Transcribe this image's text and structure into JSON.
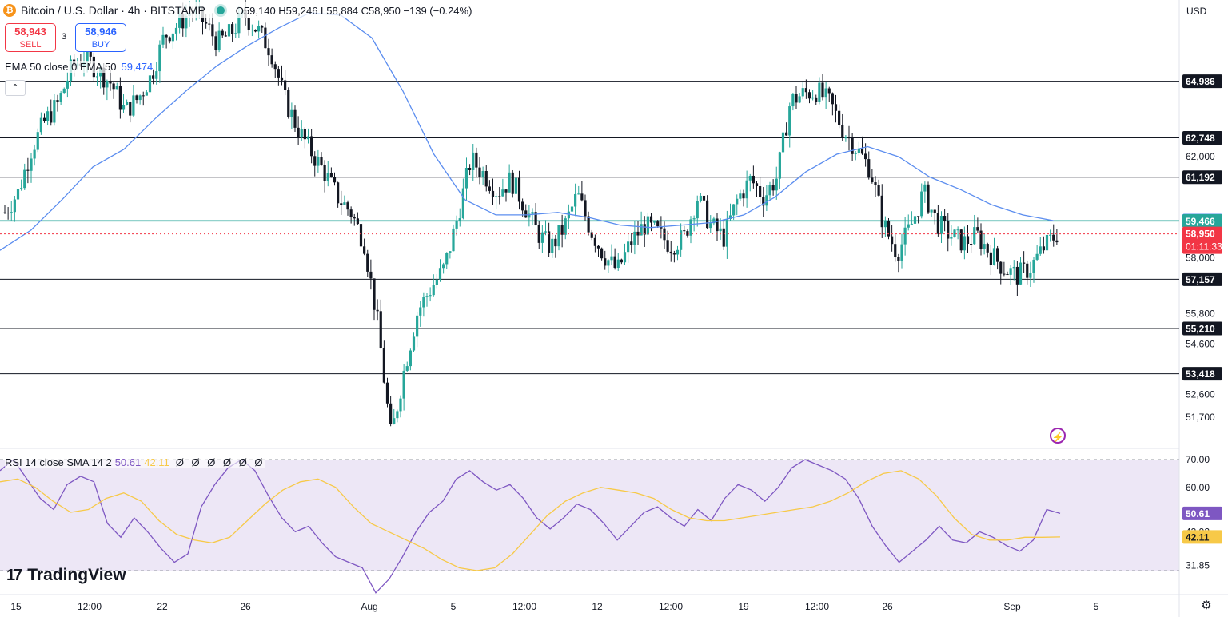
{
  "header": {
    "symbol_icon": "bitcoin-icon",
    "title": "Bitcoin / U.S. Dollar · 4h · BITSTAMP",
    "ohlc": "O59,140 H59,246 L58,884 C58,950 −139 (−0.24%)"
  },
  "trade": {
    "sell_price": "58,943",
    "sell_label": "SELL",
    "buy_price": "58,946",
    "buy_label": "BUY",
    "spread": "3"
  },
  "indicators": {
    "ema_label": "EMA 50 close 0 EMA 50",
    "ema_value": "59,474",
    "rsi_label": "RSI 14 close SMA 14 2",
    "rsi_value": "50.61",
    "rsi_sma_value": "42.11",
    "rsi_extra": "Ø Ø Ø Ø Ø Ø"
  },
  "price_axis": {
    "currency": "USD",
    "ticks": [
      "62,000",
      "58,000",
      "55,800",
      "54,600",
      "52,600",
      "51,700"
    ],
    "level_badges": [
      {
        "text": "64,986",
        "bg": "#131722",
        "fg": "#ffffff"
      },
      {
        "text": "62,748",
        "bg": "#131722",
        "fg": "#ffffff"
      },
      {
        "text": "61,192",
        "bg": "#131722",
        "fg": "#ffffff"
      },
      {
        "text": "59,474",
        "bg": "#2962ff",
        "fg": "#ffffff"
      },
      {
        "text": "59,466",
        "bg": "#26a69a",
        "fg": "#ffffff"
      },
      {
        "text": "58,950",
        "bg": "#f23645",
        "fg": "#ffffff"
      },
      {
        "text": "57,157",
        "bg": "#131722",
        "fg": "#ffffff"
      },
      {
        "text": "55,210",
        "bg": "#131722",
        "fg": "#ffffff"
      },
      {
        "text": "53,418",
        "bg": "#131722",
        "fg": "#ffffff"
      }
    ],
    "countdown": "01:11:33"
  },
  "rsi_axis": {
    "ticks": [
      "70.00",
      "60.00",
      "43.92",
      "31.85"
    ],
    "badges": [
      {
        "text": "50.61",
        "bg": "#7e57c2",
        "fg": "#ffffff"
      },
      {
        "text": "42.11",
        "bg": "#f7c948",
        "fg": "#131722"
      }
    ]
  },
  "time_axis": [
    "15",
    "12:00",
    "22",
    "26",
    "Aug",
    "5",
    "12:00",
    "12",
    "12:00",
    "19",
    "12:00",
    "26",
    "Sep",
    "5"
  ],
  "brand": "TradingView",
  "colors": {
    "up": "#26a69a",
    "down": "#131722",
    "ema": "#5b8def",
    "rsi": "#7e57c2",
    "rsi_sma": "#f7c948",
    "level_line": "#131722",
    "teal_line": "#26a69a",
    "last_price": "#f23645",
    "rsi_band": "#ede7f6"
  },
  "chart_data": {
    "type": "candlestick",
    "symbol": "Bitcoin / U.S. Dollar",
    "timeframe": "4h",
    "exchange": "BITSTAMP",
    "last": {
      "open": 59140,
      "high": 59246,
      "low": 58884,
      "close": 58950,
      "change": -139,
      "change_pct": -0.24
    },
    "horizontal_levels": [
      64986,
      62748,
      61192,
      59466,
      57157,
      55210,
      53418
    ],
    "ema50_last": 59474,
    "price_path": [
      59800,
      60600,
      62300,
      63400,
      64100,
      65500,
      66000,
      65400,
      64900,
      63800,
      64300,
      65200,
      66800,
      67200,
      67800,
      67300,
      66500,
      66900,
      67600,
      67000,
      66200,
      64300,
      63100,
      62200,
      61400,
      60400,
      59800,
      58600,
      55400,
      50900,
      53600,
      55900,
      56800,
      57600,
      59600,
      61900,
      61300,
      60600,
      61100,
      60100,
      59000,
      58400,
      59200,
      60500,
      59100,
      58100,
      57500,
      58600,
      59300,
      59000,
      58500,
      58800,
      60400,
      59300,
      58800,
      60300,
      61100,
      60400,
      61200,
      64200,
      64500,
      64600,
      64100,
      63000,
      62300,
      61500,
      59300,
      58200,
      59200,
      60600,
      59400,
      58900,
      58600,
      58900,
      58200,
      57600,
      57300,
      57600,
      58400,
      58950
    ],
    "ema_path": [
      58300,
      59100,
      60300,
      61600,
      62300,
      63500,
      64600,
      65600,
      66400,
      67100,
      67700,
      67600,
      66700,
      64600,
      62100,
      60300,
      59700,
      59700,
      59800,
      59600,
      59300,
      59200,
      59300,
      59400,
      59700,
      60400,
      61400,
      62100,
      62400,
      62000,
      61200,
      60700,
      60100,
      59700,
      59474
    ],
    "rsi_path": [
      66,
      70,
      63,
      56,
      52,
      61,
      64,
      62,
      47,
      42,
      49,
      44,
      38,
      33,
      36,
      53,
      61,
      67,
      70,
      66,
      57,
      49,
      44,
      46,
      40,
      35,
      33,
      31,
      22,
      27,
      35,
      44,
      51,
      55,
      63,
      66,
      62,
      59,
      61,
      56,
      49,
      45,
      49,
      54,
      52,
      47,
      41,
      46,
      51,
      53,
      49,
      46,
      52,
      48,
      56,
      61,
      59,
      55,
      60,
      67,
      70,
      68,
      66,
      63,
      56,
      46,
      39,
      33,
      37,
      41,
      46,
      41,
      40,
      44,
      42,
      39,
      37,
      41,
      52,
      50.61
    ],
    "rsi_sma_path": [
      62,
      63,
      60,
      55,
      51,
      52,
      56,
      58,
      55,
      48,
      43,
      41,
      40,
      42,
      48,
      54,
      59,
      62,
      63,
      60,
      53,
      47,
      44,
      41,
      38,
      34,
      31,
      30,
      31,
      36,
      43,
      50,
      55,
      58,
      60,
      59,
      58,
      56,
      52,
      49,
      48,
      48,
      49,
      50,
      51,
      52,
      53,
      55,
      58,
      62,
      65,
      66,
      63,
      57,
      49,
      43,
      41,
      41,
      42,
      42,
      42.11
    ],
    "rsi_levels": [
      70,
      50,
      30
    ]
  }
}
